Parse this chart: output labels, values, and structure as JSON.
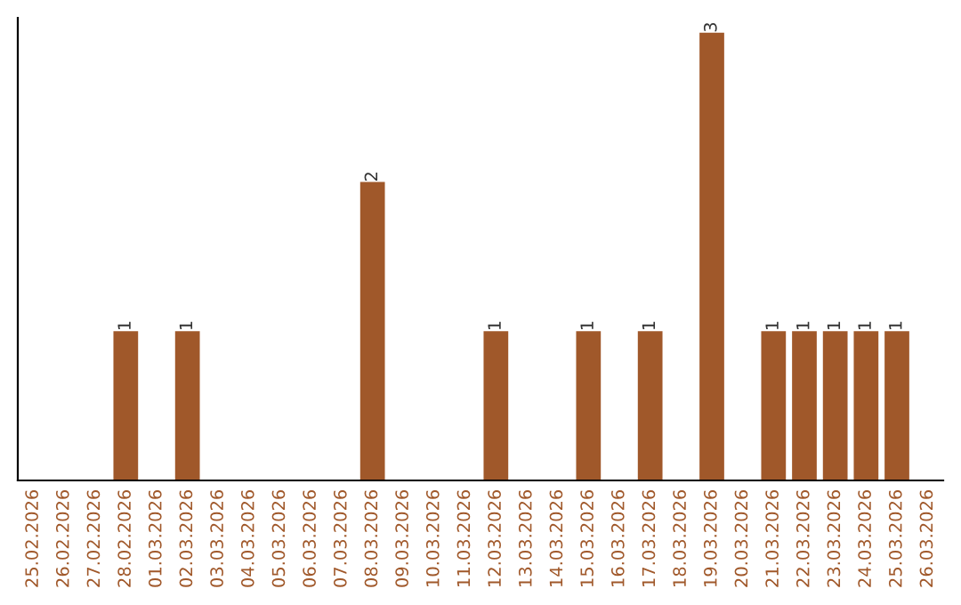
{
  "chart_data": {
    "type": "bar",
    "categories": [
      "25.02.2026",
      "26.02.2026",
      "27.02.2026",
      "28.02.2026",
      "01.03.2026",
      "02.03.2026",
      "03.03.2026",
      "04.03.2026",
      "05.03.2026",
      "06.03.2026",
      "07.03.2026",
      "08.03.2026",
      "09.03.2026",
      "10.03.2026",
      "11.03.2026",
      "12.03.2026",
      "13.03.2026",
      "14.03.2026",
      "15.03.2026",
      "16.03.2026",
      "17.03.2026",
      "18.03.2026",
      "19.03.2026",
      "20.03.2026",
      "21.03.2026",
      "22.03.2026",
      "23.03.2026",
      "24.03.2026",
      "25.03.2026",
      "26.03.2026"
    ],
    "values": [
      0,
      0,
      0,
      1,
      0,
      1,
      0,
      0,
      0,
      0,
      0,
      2,
      0,
      0,
      0,
      1,
      0,
      0,
      1,
      0,
      1,
      0,
      3,
      0,
      1,
      1,
      1,
      1,
      1,
      0
    ],
    "value_labels": [
      null,
      null,
      null,
      "1",
      null,
      "1",
      null,
      null,
      null,
      null,
      null,
      "2",
      null,
      null,
      null,
      "1",
      null,
      null,
      "1",
      null,
      "1",
      null,
      "3",
      null,
      "1",
      "1",
      "1",
      "1",
      "1",
      null
    ],
    "color": "#a0582a",
    "ylim": [
      0,
      3.1
    ],
    "tick_labels": "x",
    "grid": false
  }
}
